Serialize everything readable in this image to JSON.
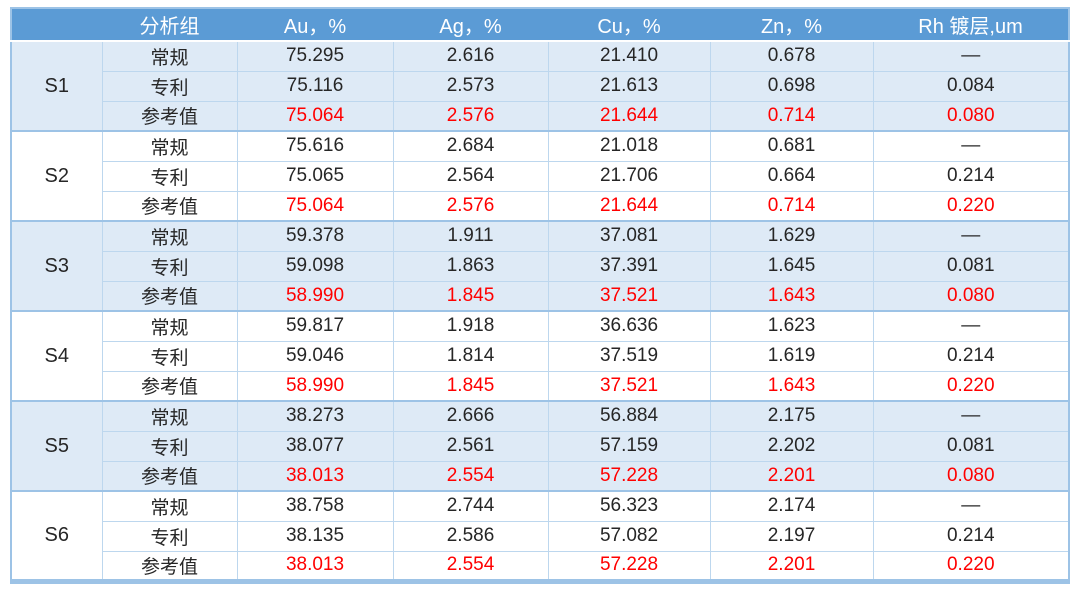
{
  "table": {
    "header": {
      "cells": [
        "",
        "分析组",
        "Au，%",
        "Ag，%",
        "Cu，%",
        "Zn，%",
        "Rh 镀层,um"
      ]
    },
    "groups": [
      {
        "label": "S1",
        "shaded": true,
        "rows": [
          {
            "label": "常规",
            "reference": false,
            "values": [
              "75.295",
              "2.616",
              "21.410",
              "0.678",
              "—"
            ]
          },
          {
            "label": "专利",
            "reference": false,
            "values": [
              "75.116",
              "2.573",
              "21.613",
              "0.698",
              "0.084"
            ]
          },
          {
            "label": "参考值",
            "reference": true,
            "values": [
              "75.064",
              "2.576",
              "21.644",
              "0.714",
              "0.080"
            ]
          }
        ]
      },
      {
        "label": "S2",
        "shaded": false,
        "rows": [
          {
            "label": "常规",
            "reference": false,
            "values": [
              "75.616",
              "2.684",
              "21.018",
              "0.681",
              "—"
            ]
          },
          {
            "label": "专利",
            "reference": false,
            "values": [
              "75.065",
              "2.564",
              "21.706",
              "0.664",
              "0.214"
            ]
          },
          {
            "label": "参考值",
            "reference": true,
            "values": [
              "75.064",
              "2.576",
              "21.644",
              "0.714",
              "0.220"
            ]
          }
        ]
      },
      {
        "label": "S3",
        "shaded": true,
        "rows": [
          {
            "label": "常规",
            "reference": false,
            "values": [
              "59.378",
              "1.911",
              "37.081",
              "1.629",
              "—"
            ]
          },
          {
            "label": "专利",
            "reference": false,
            "values": [
              "59.098",
              "1.863",
              "37.391",
              "1.645",
              "0.081"
            ]
          },
          {
            "label": "参考值",
            "reference": true,
            "values": [
              "58.990",
              "1.845",
              "37.521",
              "1.643",
              "0.080"
            ]
          }
        ]
      },
      {
        "label": "S4",
        "shaded": false,
        "rows": [
          {
            "label": "常规",
            "reference": false,
            "values": [
              "59.817",
              "1.918",
              "36.636",
              "1.623",
              "—"
            ]
          },
          {
            "label": "专利",
            "reference": false,
            "values": [
              "59.046",
              "1.814",
              "37.519",
              "1.619",
              "0.214"
            ]
          },
          {
            "label": "参考值",
            "reference": true,
            "values": [
              "58.990",
              "1.845",
              "37.521",
              "1.643",
              "0.220"
            ]
          }
        ]
      },
      {
        "label": "S5",
        "shaded": true,
        "rows": [
          {
            "label": "常规",
            "reference": false,
            "values": [
              "38.273",
              "2.666",
              "56.884",
              "2.175",
              "—"
            ]
          },
          {
            "label": "专利",
            "reference": false,
            "values": [
              "38.077",
              "2.561",
              "57.159",
              "2.202",
              "0.081"
            ]
          },
          {
            "label": "参考值",
            "reference": true,
            "values": [
              "38.013",
              "2.554",
              "57.228",
              "2.201",
              "0.080"
            ]
          }
        ]
      },
      {
        "label": "S6",
        "shaded": false,
        "rows": [
          {
            "label": "常规",
            "reference": false,
            "values": [
              "38.758",
              "2.744",
              "56.323",
              "2.174",
              "—"
            ]
          },
          {
            "label": "专利",
            "reference": false,
            "values": [
              "38.135",
              "2.586",
              "57.082",
              "2.197",
              "0.214"
            ]
          },
          {
            "label": "参考值",
            "reference": true,
            "values": [
              "38.013",
              "2.554",
              "57.228",
              "2.201",
              "0.220"
            ]
          }
        ]
      }
    ],
    "colors": {
      "header_bg": "#5B9BD5",
      "header_text": "#FFFFFF",
      "shaded_row_bg": "#DEEAF6",
      "row_bg": "#FFFFFF",
      "grid_strong": "#9DC3E6",
      "grid_light": "#BDD7EE",
      "body_text": "#262626",
      "reference_text": "#FF0000"
    }
  },
  "chart_data": {
    "type": "table",
    "columns": [
      "",
      "分析组",
      "Au，%",
      "Ag，%",
      "Cu，%",
      "Zn，%",
      "Rh 镀层,um"
    ],
    "rows": [
      [
        "S1",
        "常规",
        "75.295",
        "2.616",
        "21.410",
        "0.678",
        "—"
      ],
      [
        "S1",
        "专利",
        "75.116",
        "2.573",
        "21.613",
        "0.698",
        "0.084"
      ],
      [
        "S1",
        "参考值",
        "75.064",
        "2.576",
        "21.644",
        "0.714",
        "0.080"
      ],
      [
        "S2",
        "常规",
        "75.616",
        "2.684",
        "21.018",
        "0.681",
        "—"
      ],
      [
        "S2",
        "专利",
        "75.065",
        "2.564",
        "21.706",
        "0.664",
        "0.214"
      ],
      [
        "S2",
        "参考值",
        "75.064",
        "2.576",
        "21.644",
        "0.714",
        "0.220"
      ],
      [
        "S3",
        "常规",
        "59.378",
        "1.911",
        "37.081",
        "1.629",
        "—"
      ],
      [
        "S3",
        "专利",
        "59.098",
        "1.863",
        "37.391",
        "1.645",
        "0.081"
      ],
      [
        "S3",
        "参考值",
        "58.990",
        "1.845",
        "37.521",
        "1.643",
        "0.080"
      ],
      [
        "S4",
        "常规",
        "59.817",
        "1.918",
        "36.636",
        "1.623",
        "—"
      ],
      [
        "S4",
        "专利",
        "59.046",
        "1.814",
        "37.519",
        "1.619",
        "0.214"
      ],
      [
        "S4",
        "参考值",
        "58.990",
        "1.845",
        "37.521",
        "1.643",
        "0.220"
      ],
      [
        "S5",
        "常规",
        "38.273",
        "2.666",
        "56.884",
        "2.175",
        "—"
      ],
      [
        "S5",
        "专利",
        "38.077",
        "2.561",
        "57.159",
        "2.202",
        "0.081"
      ],
      [
        "S5",
        "参考值",
        "38.013",
        "2.554",
        "57.228",
        "2.201",
        "0.080"
      ],
      [
        "S6",
        "常规",
        "38.758",
        "2.744",
        "56.323",
        "2.174",
        "—"
      ],
      [
        "S6",
        "专利",
        "38.135",
        "2.586",
        "57.082",
        "2.197",
        "0.214"
      ],
      [
        "S6",
        "参考值",
        "38.013",
        "2.554",
        "57.228",
        "2.201",
        "0.220"
      ]
    ],
    "notes": "参考值 (reference value) rows rendered in red; '—' means no Rh plating value for 常规 rows"
  }
}
